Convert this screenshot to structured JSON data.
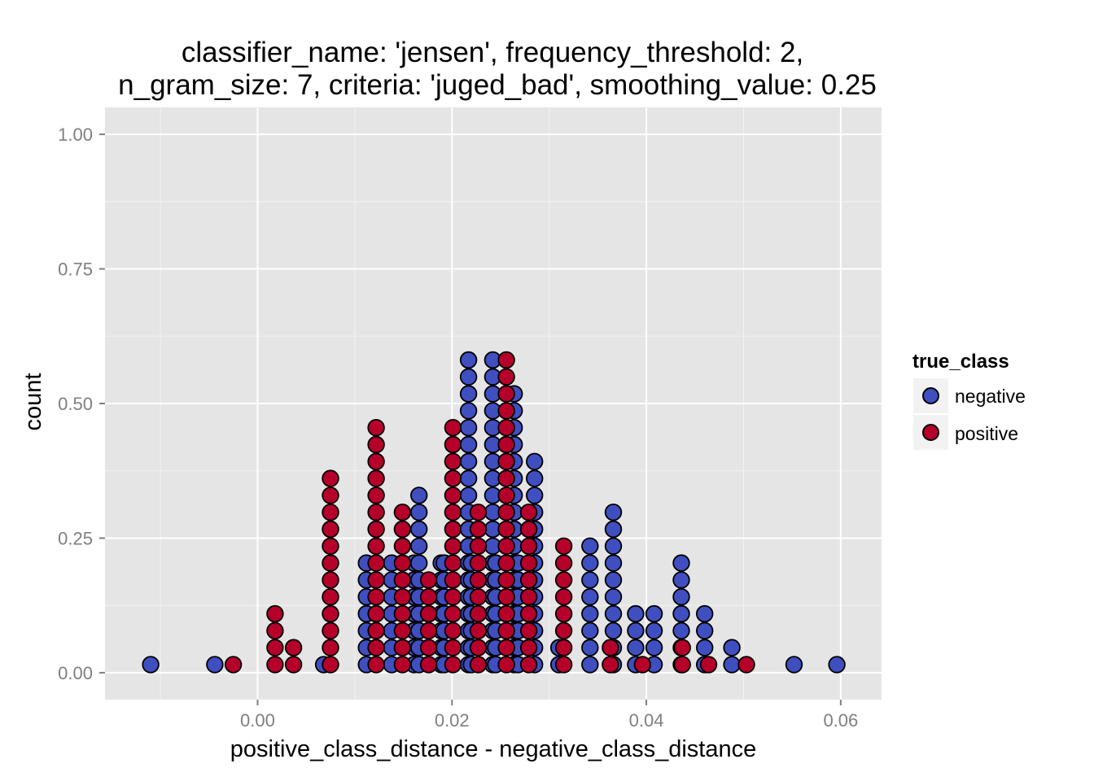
{
  "chart_data": {
    "type": "dotplot",
    "title_lines": [
      "classifier_name: 'jensen', frequency_threshold: 2,",
      "n_gram_size: 7, criteria: 'juged_bad', smoothing_value: 0.25"
    ],
    "xlabel": "positive_class_distance - negative_class_distance",
    "ylabel": "count",
    "xlim": [
      -0.0157,
      0.0642
    ],
    "ylim": [
      -0.05,
      1.05
    ],
    "x_ticks": [
      0.0,
      0.02,
      0.04,
      0.06
    ],
    "x_tick_labels": [
      "0.00",
      "0.02",
      "0.04",
      "0.06"
    ],
    "y_ticks": [
      0.0,
      0.25,
      0.5,
      0.75,
      1.0
    ],
    "y_tick_labels": [
      "0.00",
      "0.25",
      "0.50",
      "0.75",
      "1.00"
    ],
    "grid": true,
    "legend": {
      "title": "true_class",
      "position": "right",
      "entries": [
        "negative",
        "positive"
      ]
    },
    "colors": {
      "negative": "#3f4fc0",
      "positive": "#b5002a",
      "panel": "#e5e5e5",
      "grid": "#ffffff"
    },
    "series": [
      {
        "name": "negative",
        "stacks": [
          {
            "x": -0.011,
            "count": 1
          },
          {
            "x": -0.0044,
            "count": 1
          },
          {
            "x": 0.0068,
            "count": 1
          },
          {
            "x": 0.0112,
            "count": 7
          },
          {
            "x": 0.0138,
            "count": 7
          },
          {
            "x": 0.0161,
            "count": 7
          },
          {
            "x": 0.0166,
            "count": 11
          },
          {
            "x": 0.0189,
            "count": 7
          },
          {
            "x": 0.0192,
            "count": 7
          },
          {
            "x": 0.0217,
            "count": 19
          },
          {
            "x": 0.022,
            "count": 7
          },
          {
            "x": 0.0242,
            "count": 19
          },
          {
            "x": 0.0245,
            "count": 7
          },
          {
            "x": 0.0264,
            "count": 17
          },
          {
            "x": 0.0268,
            "count": 7
          },
          {
            "x": 0.0285,
            "count": 13
          },
          {
            "x": 0.031,
            "count": 2
          },
          {
            "x": 0.0342,
            "count": 8
          },
          {
            "x": 0.0366,
            "count": 10
          },
          {
            "x": 0.0389,
            "count": 4
          },
          {
            "x": 0.0408,
            "count": 4
          },
          {
            "x": 0.0436,
            "count": 7
          },
          {
            "x": 0.046,
            "count": 4
          },
          {
            "x": 0.0488,
            "count": 2
          },
          {
            "x": 0.0552,
            "count": 1
          },
          {
            "x": 0.0596,
            "count": 1
          }
        ]
      },
      {
        "name": "positive",
        "stacks": [
          {
            "x": -0.0025,
            "count": 1
          },
          {
            "x": 0.0018,
            "count": 4
          },
          {
            "x": 0.0037,
            "count": 2
          },
          {
            "x": 0.0075,
            "count": 12
          },
          {
            "x": 0.0122,
            "count": 15
          },
          {
            "x": 0.0149,
            "count": 10
          },
          {
            "x": 0.0176,
            "count": 6
          },
          {
            "x": 0.0201,
            "count": 15
          },
          {
            "x": 0.0227,
            "count": 10
          },
          {
            "x": 0.0256,
            "count": 19
          },
          {
            "x": 0.0279,
            "count": 10
          },
          {
            "x": 0.0315,
            "count": 8
          },
          {
            "x": 0.0363,
            "count": 2
          },
          {
            "x": 0.0396,
            "count": 1
          },
          {
            "x": 0.0437,
            "count": 2
          },
          {
            "x": 0.0464,
            "count": 1
          },
          {
            "x": 0.0503,
            "count": 1
          }
        ]
      }
    ]
  }
}
